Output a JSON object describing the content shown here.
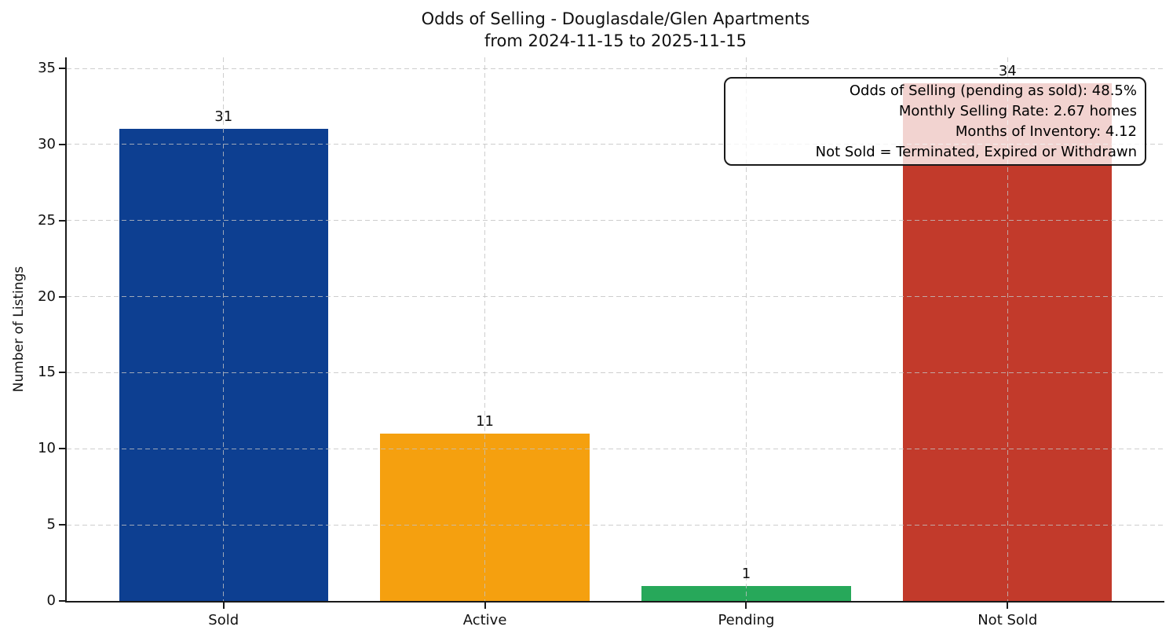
{
  "title": {
    "line1": "Odds of Selling - Douglasdale/Glen Apartments",
    "line2": "from 2024-11-15 to 2025-11-15"
  },
  "chart_data": {
    "type": "bar",
    "title": "Odds of Selling - Douglasdale/Glen Apartments\nfrom 2024-11-15 to 2025-11-15",
    "categories": [
      "Sold",
      "Active",
      "Pending",
      "Not Sold"
    ],
    "values": [
      31,
      11,
      1,
      34
    ],
    "bar_value_labels": [
      "31",
      "11",
      "1",
      "34"
    ],
    "bar_colors": [
      "#0d3f91",
      "#f5a00f",
      "#27a85a",
      "#c23a2b"
    ],
    "xlabel": "",
    "ylabel": "Number of Listings",
    "ylim": [
      0,
      35.7
    ],
    "yticks": [
      0,
      5,
      10,
      15,
      20,
      25,
      30,
      35
    ],
    "grid": "dashed, light gray, horizontal and vertical",
    "legend": "none",
    "annotation": {
      "lines": [
        "Odds of Selling (pending as sold): 48.5%",
        "Monthly Selling Rate: 2.67 homes",
        "Months of Inventory: 4.12",
        "Not Sold = Terminated, Expired or Withdrawn"
      ]
    }
  },
  "colors": {
    "sold_bar": "#0d3f91",
    "active_bar": "#f5a00f",
    "pending_bar": "#27a85a",
    "not_sold_bar": "#c23a2b",
    "axis": "#1a1a1a",
    "grid": "#c2c2c2",
    "background": "#ffffff"
  }
}
